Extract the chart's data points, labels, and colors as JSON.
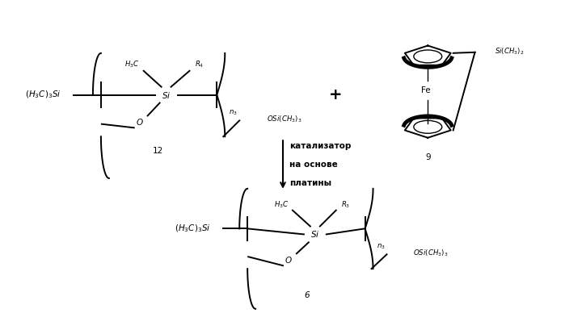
{
  "bg_color": "#ffffff",
  "text_color": "#000000",
  "figsize": [
    6.99,
    4.09
  ],
  "dpi": 100,
  "arrow_label_line1": "катализатор",
  "arrow_label_line2": "на основе",
  "arrow_label_line3": "платины"
}
